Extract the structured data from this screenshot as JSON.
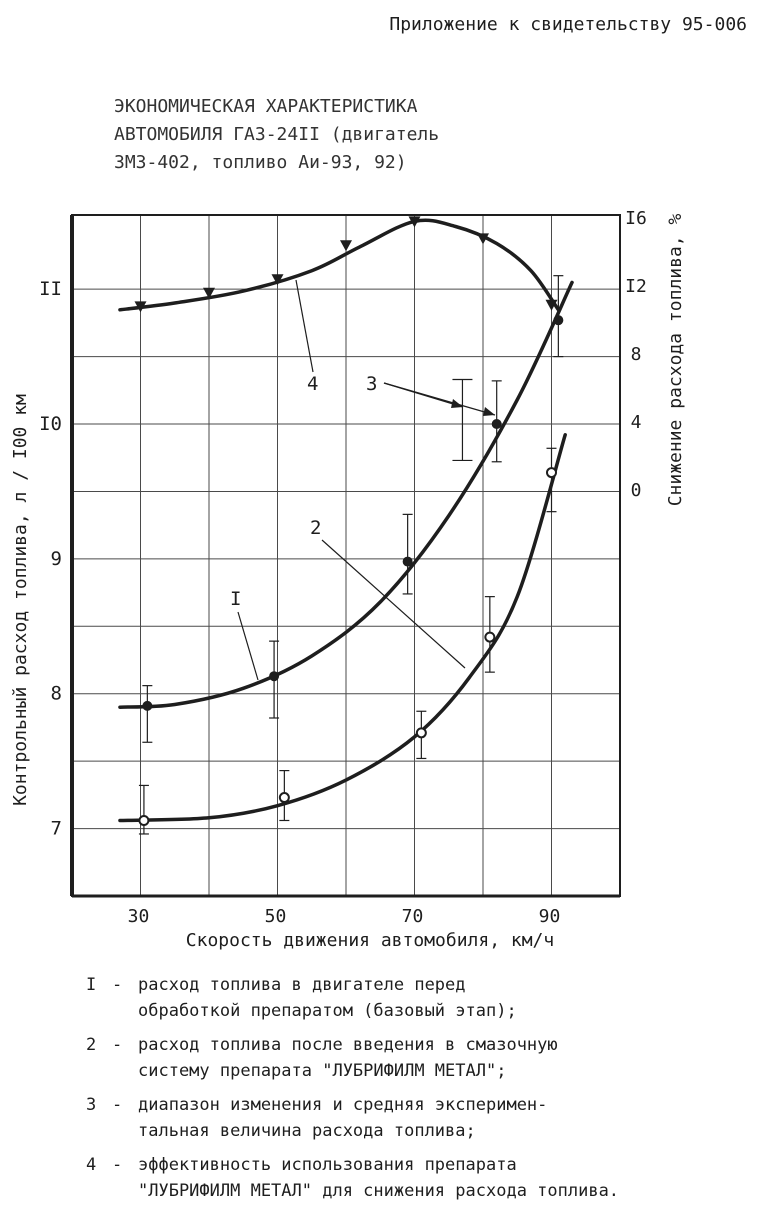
{
  "header": "Приложение к свидетельству 95-006",
  "title_lines": [
    "ЭКОНОМИЧЕСКАЯ ХАРАКТЕРИСТИКА",
    "АВТОМОБИЛЯ ГАЗ-24II (двигатель",
    "ЗМЗ-402, топливо Аи-93, 92)"
  ],
  "chart_data": {
    "type": "line",
    "title": "ЭКОНОМИЧЕСКАЯ ХАРАКТЕРИСТИКА АВТОМОБИЛЯ ГАЗ-24II (двигатель ЗМЗ-402, топливо Аи-93, 92)",
    "xlabel": "Скорость движения автомобиля, км/ч",
    "ylabel": "Контрольный расход топлива, л / I00 км",
    "y2label": "Снижение расхода топлива, %",
    "xlim": [
      20,
      100
    ],
    "ylim": [
      6.5,
      11.55
    ],
    "y2lim": [
      0,
      16
    ],
    "x_ticks": [
      "30",
      "50",
      "70",
      "90"
    ],
    "y_ticks": [
      "7",
      "8",
      "9",
      "I0",
      "II"
    ],
    "y2_ticks": [
      "0",
      "4",
      "8",
      "I2",
      "I6"
    ],
    "grid": true,
    "series": [
      {
        "name": "I",
        "marker": "filled-circle",
        "points": [
          {
            "x": 31,
            "y": 7.91,
            "lo": 7.64,
            "hi": 8.06
          },
          {
            "x": 49.5,
            "y": 8.13,
            "lo": 7.82,
            "hi": 8.39
          },
          {
            "x": 69,
            "y": 8.98,
            "lo": 8.74,
            "hi": 9.33
          },
          {
            "x": 82,
            "y": 10.0,
            "lo": 9.72,
            "hi": 10.32
          },
          {
            "x": 91,
            "y": 10.77,
            "lo": 10.5,
            "hi": 11.1
          }
        ],
        "curve": [
          [
            27,
            7.9
          ],
          [
            35,
            7.92
          ],
          [
            45,
            8.04
          ],
          [
            55,
            8.28
          ],
          [
            65,
            8.68
          ],
          [
            75,
            9.32
          ],
          [
            85,
            10.18
          ],
          [
            93,
            11.05
          ]
        ]
      },
      {
        "name": "2",
        "marker": "open-circle",
        "points": [
          {
            "x": 30.5,
            "y": 7.06,
            "lo": 6.96,
            "hi": 7.32
          },
          {
            "x": 51,
            "y": 7.23,
            "lo": 7.06,
            "hi": 7.43
          },
          {
            "x": 71,
            "y": 7.71,
            "lo": 7.52,
            "hi": 7.87
          },
          {
            "x": 81,
            "y": 8.42,
            "lo": 8.16,
            "hi": 8.72
          },
          {
            "x": 90,
            "y": 9.64,
            "lo": 9.35,
            "hi": 9.82
          }
        ],
        "curve": [
          [
            27,
            7.06
          ],
          [
            40,
            7.08
          ],
          [
            50,
            7.17
          ],
          [
            60,
            7.36
          ],
          [
            70,
            7.68
          ],
          [
            78,
            8.12
          ],
          [
            85,
            8.72
          ],
          [
            92,
            9.92
          ]
        ]
      },
      {
        "name": "4",
        "axis": "right",
        "marker": "filled-triangle-down",
        "points": [
          {
            "x": 30,
            "y": 10.8
          },
          {
            "x": 40,
            "y": 11.6
          },
          {
            "x": 50,
            "y": 12.4
          },
          {
            "x": 60,
            "y": 14.4
          },
          {
            "x": 70,
            "y": 15.8
          },
          {
            "x": 80,
            "y": 14.8
          },
          {
            "x": 90,
            "y": 10.9
          }
        ],
        "curve": [
          [
            27,
            10.6
          ],
          [
            35,
            11.0
          ],
          [
            45,
            11.7
          ],
          [
            55,
            12.9
          ],
          [
            62,
            14.3
          ],
          [
            70,
            15.8
          ],
          [
            76,
            15.5
          ],
          [
            82,
            14.5
          ],
          [
            87,
            12.9
          ],
          [
            91,
            10.6
          ]
        ]
      }
    ],
    "range_3": {
      "x": 77,
      "lo": 9.73,
      "hi": 10.33
    },
    "annotations": [
      {
        "label": "I",
        "target": "series I"
      },
      {
        "label": "2",
        "target": "series 2"
      },
      {
        "label": "3",
        "target": "range and mean markers"
      },
      {
        "label": "4",
        "target": "series 4"
      }
    ]
  },
  "legend": [
    {
      "num": "I",
      "lines": [
        "расход топлива в двигателе перед",
        "обработкой препаратом (базовый этап);"
      ]
    },
    {
      "num": "2",
      "lines": [
        "расход топлива после введения в смазочную",
        "систему препарата \"ЛУБРИФИЛМ МЕТАЛ\";"
      ]
    },
    {
      "num": "3",
      "lines": [
        "диапазон изменения и средняя эксперимен-",
        "тальная величина расхода топлива;"
      ]
    },
    {
      "num": "4",
      "lines": [
        "эффективность использования препарата",
        "\"ЛУБРИФИЛМ МЕТАЛ\" для снижения расхода топлива."
      ]
    }
  ],
  "colors": {
    "ink": "#1e1e1e",
    "grid": "#4a4a4a",
    "paper": "#ffffff"
  }
}
